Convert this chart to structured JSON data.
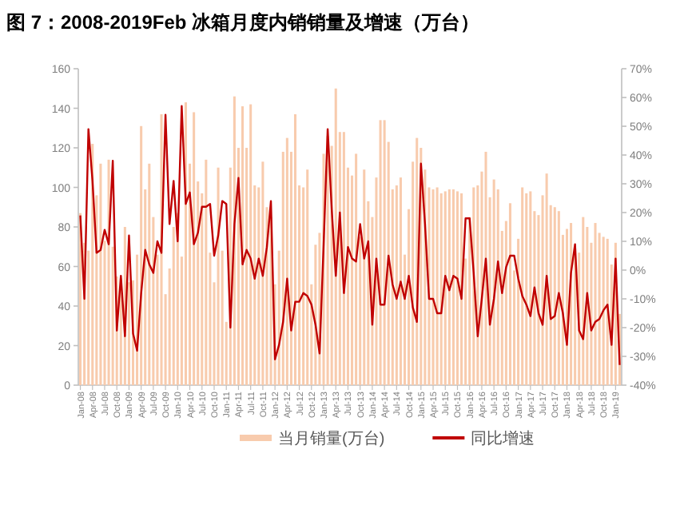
{
  "chart_data": {
    "type": "bar",
    "title": "图 7：2008-2019Feb 冰箱月度内销销量及增速（万台）",
    "categories": [
      "Jan-08",
      null,
      null,
      "Apr-08",
      null,
      null,
      "Jul-08",
      null,
      null,
      "Oct-08",
      null,
      null,
      "Jan-09",
      null,
      null,
      "Apr-09",
      null,
      null,
      "Jul-09",
      null,
      null,
      "Oct-09",
      null,
      null,
      "Jan-10",
      null,
      null,
      "Apr-10",
      null,
      null,
      "Jul-10",
      null,
      null,
      "Oct-10",
      null,
      null,
      "Jan-11",
      null,
      null,
      "Apr-11",
      null,
      null,
      "Jul-11",
      null,
      null,
      "Oct-11",
      null,
      null,
      "Jan-12",
      null,
      null,
      "Apr-12",
      null,
      null,
      "Jul-12",
      null,
      null,
      "Oct-12",
      null,
      null,
      "Jan-13",
      null,
      null,
      "Apr-13",
      null,
      null,
      "Jul-13",
      null,
      null,
      "Oct-13",
      null,
      null,
      "Jan-14",
      null,
      null,
      "Apr-14",
      null,
      null,
      "Jul-14",
      null,
      null,
      "Oct-14",
      null,
      null,
      "Jan-15",
      null,
      null,
      "Apr-15",
      null,
      null,
      "Jul-15",
      null,
      null,
      "Oct-15",
      null,
      null,
      "Jan-16",
      null,
      null,
      "Apr-16",
      null,
      null,
      "Jul-16",
      null,
      null,
      "Oct-16",
      null,
      null,
      "Jan-17",
      null,
      null,
      "Apr-17",
      null,
      null,
      "Jul-17",
      null,
      null,
      "Oct-17",
      null,
      null,
      "Jan-18",
      null,
      null,
      "Apr-18",
      null,
      null,
      "Jul-18",
      null,
      null,
      "Oct-18",
      null,
      null,
      "Jan-19",
      null
    ],
    "series": [
      {
        "name": "当月销量(万台)",
        "color": "#f8cbad",
        "values": [
          87,
          72,
          68,
          122,
          96,
          112,
          73,
          114,
          70,
          55,
          54,
          80,
          52,
          53,
          66,
          131,
          99,
          112,
          85,
          66,
          137,
          46,
          59,
          80,
          87,
          65,
          143,
          112,
          138,
          103,
          97,
          114,
          67,
          52,
          110,
          68,
          32,
          110,
          146,
          120,
          141,
          120,
          142,
          101,
          100,
          113,
          90,
          85,
          51,
          68,
          118,
          125,
          118,
          137,
          101,
          100,
          109,
          51,
          71,
          77,
          117,
          126,
          121,
          150,
          128,
          128,
          110,
          106,
          117,
          75,
          109,
          93,
          85,
          105,
          134,
          134,
          123,
          99,
          101,
          105,
          66,
          89,
          113,
          125,
          120,
          109,
          100,
          99,
          100,
          97,
          98,
          99,
          99,
          98,
          97,
          64,
          85,
          100,
          101,
          108,
          118,
          95,
          104,
          99,
          78,
          83,
          92,
          58,
          74,
          100,
          97,
          98,
          88,
          86,
          96,
          107,
          91,
          90,
          88,
          76,
          79,
          82,
          69,
          67,
          85,
          80,
          72,
          82,
          77,
          75,
          74,
          61,
          72,
          36
        ]
      },
      {
        "name": "同比增速",
        "type": "line",
        "axis": "y2",
        "color": "#c00000",
        "values": [
          19,
          -10,
          49,
          31,
          6,
          7,
          14,
          9,
          38,
          -21,
          -2,
          -23,
          12,
          -22,
          -28,
          -8,
          7,
          2,
          -1,
          10,
          6,
          54,
          16,
          31,
          10,
          57,
          23,
          27,
          9,
          13,
          22,
          22,
          23,
          5,
          12,
          24,
          23,
          -20,
          16,
          32,
          2,
          7,
          4,
          -3,
          4,
          -2,
          8,
          24,
          -31,
          -26,
          -18,
          -3,
          -21,
          -11,
          -11,
          -8,
          -9,
          -12,
          -19,
          -29,
          9,
          49,
          21,
          -2,
          20,
          -8,
          8,
          4,
          3,
          16,
          4,
          10,
          -19,
          4,
          -12,
          -12,
          5,
          -5,
          -10,
          -4,
          -10,
          -2,
          -13,
          -18,
          37,
          16,
          -10,
          -10,
          -15,
          -15,
          -2,
          -7,
          -2,
          -3,
          -10,
          18,
          18,
          -1,
          -23,
          -10,
          4,
          -19,
          -10,
          3,
          -8,
          1,
          5,
          5,
          -3,
          -9,
          -12,
          -16,
          -6,
          -15,
          -19,
          -2,
          -17,
          -16,
          -8,
          -15,
          -26,
          -1,
          9,
          -21,
          -24,
          -8,
          -21,
          -18,
          -17,
          -14,
          -12,
          -26,
          4,
          -33
        ]
      }
    ],
    "ylim": [
      0,
      160
    ],
    "yticks": [
      0,
      20,
      40,
      60,
      80,
      100,
      120,
      140,
      160
    ],
    "y2lim": [
      -40,
      70
    ],
    "y2ticks": [
      {
        "value": -40,
        "label": "-40%"
      },
      {
        "value": -30,
        "label": "-30%"
      },
      {
        "value": -20,
        "label": "-20%"
      },
      {
        "value": -10,
        "label": "-10%"
      },
      {
        "value": 0,
        "label": "0%"
      },
      {
        "value": 10,
        "label": "10%"
      },
      {
        "value": 20,
        "label": "20%"
      },
      {
        "value": 30,
        "label": "30%"
      },
      {
        "value": 40,
        "label": "40%"
      },
      {
        "value": 50,
        "label": "50%"
      },
      {
        "value": 60,
        "label": "60%"
      },
      {
        "value": 70,
        "label": "70%"
      }
    ],
    "legend": "bottom"
  }
}
